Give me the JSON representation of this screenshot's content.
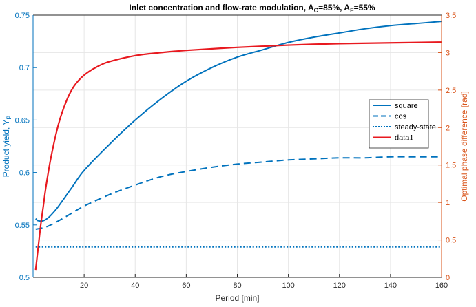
{
  "chart_data": {
    "type": "line",
    "title": {
      "main": "Inlet concentration and flow-rate modulation, A",
      "sub1": "C",
      "mid": "=85%, A",
      "sub2": "F",
      "end": "=55%"
    },
    "xlabel": "Period [min]",
    "ylabel_left": {
      "main": "Product yield, Y",
      "sub": "P"
    },
    "ylabel_right": "Optimal phase difference [rad]",
    "xlim": [
      0,
      160
    ],
    "ylim_left": [
      0.5,
      0.75
    ],
    "ylim_right": [
      0,
      3.5
    ],
    "xticks": [
      "20",
      "40",
      "60",
      "80",
      "100",
      "120",
      "140",
      "160"
    ],
    "yticks_left": [
      "0.5",
      "0.55",
      "0.6",
      "0.65",
      "0.7",
      "0.75"
    ],
    "yticks_right": [
      "0",
      "0.5",
      "1",
      "1.5",
      "2",
      "2.5",
      "3",
      "3.5"
    ],
    "grid": true,
    "legend_position": "right",
    "colors": {
      "left_axis": "#0072BD",
      "right_axis": "#D95319",
      "red": "#E8191F",
      "blue": "#0072BD"
    },
    "series": [
      {
        "name": "square",
        "axis": "left",
        "style": "solid",
        "x": [
          1,
          2,
          4,
          6,
          8,
          10,
          15,
          20,
          30,
          40,
          50,
          60,
          70,
          80,
          90,
          100,
          110,
          120,
          130,
          140,
          150,
          160
        ],
        "y": [
          0.556,
          0.554,
          0.554,
          0.557,
          0.562,
          0.568,
          0.585,
          0.602,
          0.627,
          0.65,
          0.67,
          0.687,
          0.7,
          0.71,
          0.717,
          0.724,
          0.729,
          0.733,
          0.737,
          0.74,
          0.742,
          0.744
        ]
      },
      {
        "name": "cos",
        "axis": "left",
        "style": "dashed",
        "x": [
          1,
          5,
          10,
          15,
          20,
          30,
          40,
          50,
          60,
          70,
          80,
          90,
          100,
          110,
          120,
          130,
          140,
          150,
          160
        ],
        "y": [
          0.546,
          0.548,
          0.554,
          0.561,
          0.568,
          0.579,
          0.588,
          0.596,
          0.601,
          0.605,
          0.608,
          0.61,
          0.612,
          0.613,
          0.614,
          0.614,
          0.615,
          0.615,
          0.615
        ]
      },
      {
        "name": "steady-state",
        "axis": "left",
        "style": "dotted",
        "x": [
          1,
          160
        ],
        "y": [
          0.529,
          0.529
        ]
      },
      {
        "name": "data1",
        "axis": "right",
        "style": "solid",
        "x": [
          1,
          2,
          3,
          4,
          5,
          7,
          10,
          13,
          16,
          20,
          25,
          30,
          40,
          50,
          60,
          80,
          100,
          120,
          140,
          160
        ],
        "y": [
          0.1,
          0.4,
          0.7,
          0.95,
          1.2,
          1.6,
          2.05,
          2.35,
          2.55,
          2.7,
          2.81,
          2.88,
          2.96,
          3.0,
          3.03,
          3.07,
          3.1,
          3.12,
          3.13,
          3.14
        ]
      }
    ]
  }
}
